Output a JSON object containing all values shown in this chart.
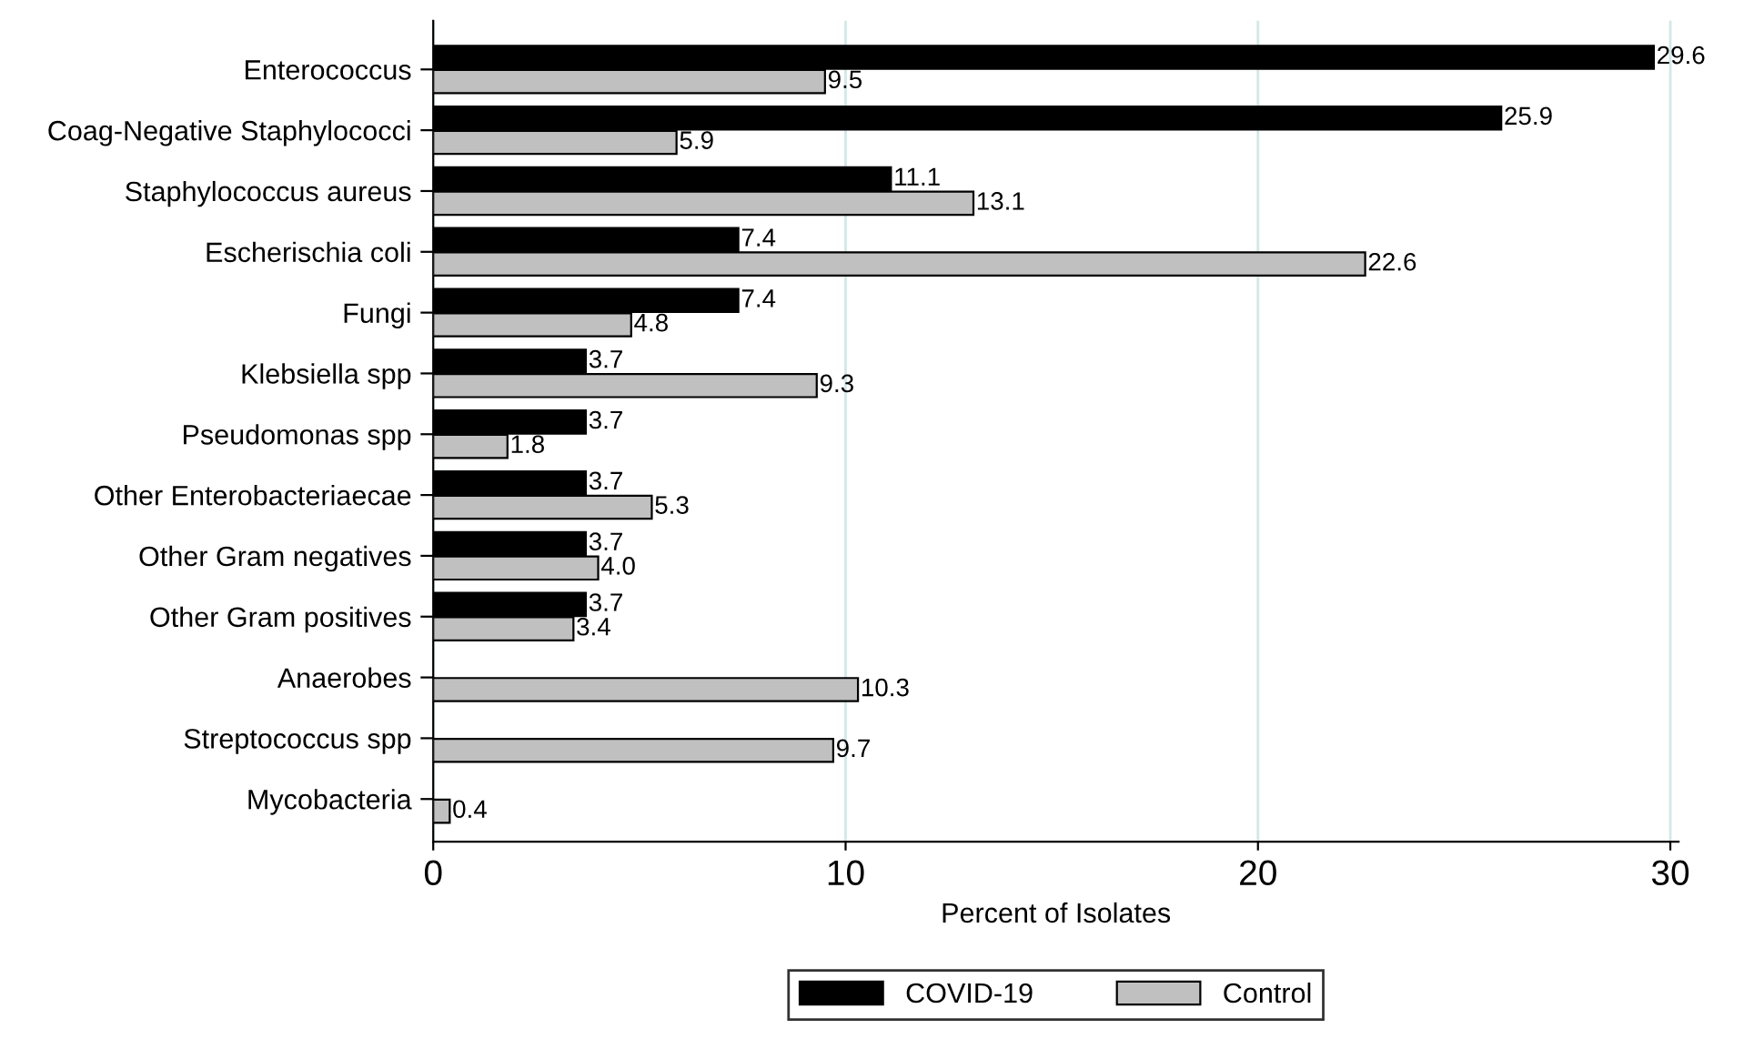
{
  "chart_data": {
    "type": "bar",
    "orientation": "horizontal",
    "xlabel": "Percent of Isolates",
    "categories": [
      "Enterococcus",
      "Coag-Negative Staphylococci",
      "Staphylococcus aureus",
      "Escherischia coli",
      "Fungi",
      "Klebsiella spp",
      "Pseudomonas spp",
      "Other Enterobacteriaecae",
      "Other Gram negatives",
      "Other Gram positives",
      "Anaerobes",
      "Streptococcus spp",
      "Mycobacteria"
    ],
    "series": [
      {
        "name": "COVID-19",
        "color": "#000000",
        "values": [
          29.6,
          25.9,
          11.1,
          7.4,
          7.4,
          3.7,
          3.7,
          3.7,
          3.7,
          3.7,
          null,
          null,
          null
        ],
        "value_labels": [
          "29.6",
          "25.9",
          "11.1",
          "7.4",
          "7.4",
          "3.7",
          "3.7",
          "3.7",
          "3.7",
          "3.7",
          null,
          null,
          null
        ]
      },
      {
        "name": "Control",
        "color": "#c0c0c0",
        "values": [
          9.5,
          5.9,
          13.1,
          22.6,
          4.8,
          9.3,
          1.8,
          5.3,
          4.0,
          3.4,
          10.3,
          9.7,
          0.4
        ],
        "value_labels": [
          "9.5",
          "5.9",
          "13.1",
          "22.6",
          "4.8",
          "9.3",
          "1.8",
          "5.3",
          "4.0",
          "3.4",
          "10.3",
          "9.7",
          "0.4"
        ]
      }
    ],
    "xlim": [
      0,
      30.2
    ],
    "xticks": [
      0,
      10,
      20,
      30
    ],
    "grid": "x",
    "legend": "bottom"
  }
}
